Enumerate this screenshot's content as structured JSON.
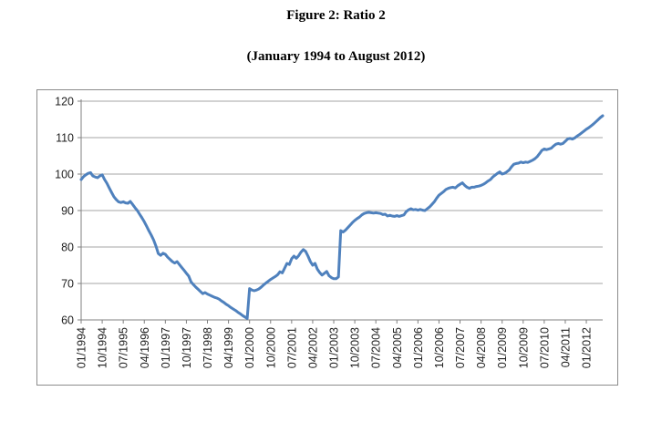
{
  "page": {
    "title": "Figure 2: Ratio 2",
    "subtitle": "(January 1994 to August 2012)"
  },
  "chart_data": {
    "type": "line",
    "title": "Figure 2: Ratio 2",
    "subtitle": "(January 1994 to August 2012)",
    "ylabel": "",
    "xlabel": "",
    "ylim": [
      60,
      120
    ],
    "y_ticks": [
      60,
      70,
      80,
      90,
      100,
      110,
      120
    ],
    "grid": true,
    "legend": "none",
    "line_color": "#4F81BD",
    "gridline_color": "#a6a6a6",
    "axis_color": "#808080",
    "x_start": "01/1994",
    "x_end": "08/2012",
    "x_tick_interval_months": 9,
    "x_tick_labels": [
      "01/1994",
      "10/1994",
      "07/1995",
      "04/1996",
      "01/1997",
      "10/1997",
      "07/1998",
      "04/1999",
      "01/2000",
      "10/2000",
      "07/2001",
      "04/2002",
      "01/2003",
      "10/2003",
      "07/2004",
      "04/2005",
      "01/2006",
      "10/2006",
      "07/2007",
      "04/2008",
      "01/2009",
      "10/2009",
      "07/2010",
      "04/2011",
      "01/2012"
    ],
    "series": [
      {
        "name": "Ratio 2",
        "values": [
          98.5,
          99.3,
          99.8,
          100.2,
          100.4,
          99.5,
          99.2,
          99.0,
          99.5,
          99.8,
          98.5,
          97.5,
          96.2,
          95.0,
          93.8,
          93.0,
          92.4,
          92.2,
          92.4,
          92.1,
          92.0,
          92.5,
          91.7,
          90.8,
          90.0,
          89.0,
          88.0,
          86.9,
          85.7,
          84.4,
          83.2,
          81.9,
          80.2,
          78.2,
          77.7,
          78.3,
          78.0,
          77.2,
          76.6,
          76.0,
          75.6,
          76.0,
          75.2,
          74.4,
          73.6,
          72.8,
          72.0,
          70.4,
          69.7,
          69.0,
          68.4,
          67.8,
          67.2,
          67.5,
          67.1,
          66.8,
          66.5,
          66.2,
          66.0,
          65.7,
          65.2,
          64.8,
          64.3,
          63.9,
          63.4,
          63.0,
          62.6,
          62.1,
          61.7,
          61.2,
          60.8,
          60.4,
          68.6,
          68.2,
          68.0,
          68.2,
          68.5,
          69.0,
          69.6,
          70.1,
          70.6,
          71.1,
          71.5,
          71.9,
          72.4,
          73.2,
          72.9,
          74.2,
          75.5,
          75.2,
          76.8,
          77.5,
          76.9,
          77.6,
          78.6,
          79.3,
          78.8,
          77.5,
          76.0,
          75.0,
          75.5,
          73.9,
          73.0,
          72.3,
          72.8,
          73.3,
          72.1,
          71.6,
          71.3,
          71.3,
          71.8,
          84.5,
          84.1,
          84.6,
          85.3,
          86.0,
          86.7,
          87.3,
          87.8,
          88.2,
          88.8,
          89.2,
          89.4,
          89.5,
          89.4,
          89.3,
          89.4,
          89.3,
          89.2,
          88.9,
          89.0,
          88.5,
          88.7,
          88.5,
          88.4,
          88.6,
          88.4,
          88.6,
          88.8,
          89.7,
          90.2,
          90.5,
          90.2,
          90.3,
          90.1,
          90.3,
          90.1,
          90.0,
          90.5,
          91.0,
          91.7,
          92.4,
          93.4,
          94.2,
          94.7,
          95.2,
          95.8,
          96.1,
          96.3,
          96.4,
          96.2,
          96.8,
          97.2,
          97.6,
          96.9,
          96.4,
          96.1,
          96.4,
          96.4,
          96.6,
          96.7,
          96.9,
          97.2,
          97.6,
          98.1,
          98.5,
          99.2,
          99.7,
          100.2,
          100.6,
          100.0,
          100.2,
          100.6,
          101.1,
          102.0,
          102.7,
          102.9,
          103.0,
          103.3,
          103.1,
          103.3,
          103.2,
          103.5,
          103.8,
          104.2,
          104.8,
          105.6,
          106.5,
          106.9,
          106.7,
          106.9,
          107.1,
          107.7,
          108.2,
          108.4,
          108.2,
          108.4,
          109.0,
          109.6,
          109.8,
          109.6,
          109.9,
          110.4,
          110.8,
          111.3,
          111.8,
          112.3,
          112.7,
          113.2,
          113.7,
          114.3,
          114.9,
          115.5,
          116.0
        ]
      }
    ]
  }
}
